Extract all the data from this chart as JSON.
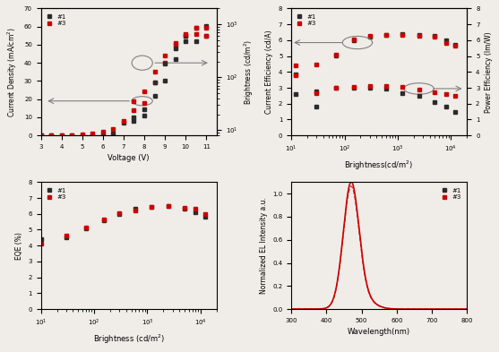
{
  "background": "#f0ede8",
  "color1": "#2b2b2b",
  "color3": "#cc0000",
  "jv_voltage": [
    3,
    3.5,
    4,
    4.5,
    5,
    5.5,
    6,
    6.5,
    7,
    7.5,
    8,
    8.5,
    9,
    9.5,
    10,
    10.5,
    11
  ],
  "jv_j1": [
    0,
    0,
    0,
    0.05,
    0.1,
    0.2,
    0.5,
    0.9,
    7,
    10,
    11,
    22,
    30,
    42,
    52,
    52,
    55
  ],
  "jv_j3": [
    0,
    0,
    0.1,
    0.2,
    0.5,
    1.0,
    2.0,
    3.5,
    8,
    14,
    18,
    29,
    40,
    50,
    55,
    56,
    55
  ],
  "b_voltage": [
    7.5,
    8,
    8.5,
    9,
    9.5,
    10,
    10.5,
    11
  ],
  "b1_vals": [
    15,
    25,
    80,
    180,
    350,
    600,
    850,
    950
  ],
  "b3_vals": [
    35,
    55,
    130,
    260,
    450,
    650,
    850,
    880
  ],
  "bright": [
    12,
    30,
    70,
    150,
    300,
    600,
    1200,
    2500,
    5000,
    8000,
    12000
  ],
  "ce1": [
    3.85,
    2.75,
    5.05,
    6.0,
    6.2,
    6.35,
    6.4,
    6.35,
    6.3,
    6.0,
    5.7
  ],
  "ce3": [
    4.4,
    4.45,
    5.1,
    6.05,
    6.3,
    6.35,
    6.35,
    6.3,
    6.2,
    5.85,
    5.65
  ],
  "pe1": [
    2.6,
    1.8,
    3.0,
    3.0,
    3.0,
    2.95,
    2.65,
    2.5,
    2.1,
    1.8,
    1.5
  ],
  "pe3": [
    3.8,
    2.65,
    3.0,
    3.05,
    3.1,
    3.1,
    3.05,
    2.9,
    2.7,
    2.6,
    2.5
  ],
  "eqe_b": [
    10,
    30,
    70,
    150,
    300,
    600,
    1200,
    2500,
    5000,
    8000,
    12000
  ],
  "eqe1": [
    4.4,
    4.5,
    5.1,
    5.6,
    6.0,
    6.35,
    6.45,
    6.5,
    6.3,
    6.1,
    5.8
  ],
  "eqe3": [
    4.15,
    4.65,
    5.15,
    5.65,
    6.05,
    6.2,
    6.45,
    6.5,
    6.4,
    6.3,
    6.0
  ]
}
